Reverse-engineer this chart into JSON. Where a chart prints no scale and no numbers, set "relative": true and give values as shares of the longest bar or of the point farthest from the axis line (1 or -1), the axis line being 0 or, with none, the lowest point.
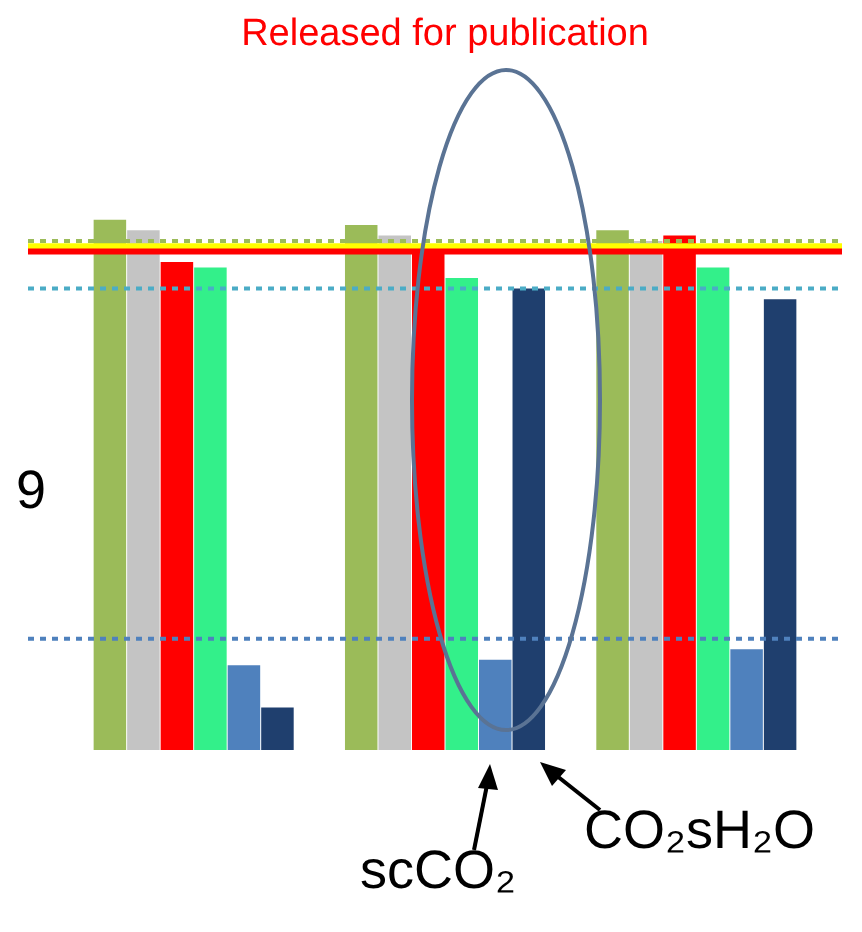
{
  "chart_data": {
    "type": "bar",
    "title": "Released for publication",
    "relative": true,
    "legend": false,
    "categories": [
      null,
      null,
      null
    ],
    "series": [
      {
        "color": "#9bbb59",
        "values": [
          1,
          0.99,
          0.98
        ]
      },
      {
        "color": "#c4c4c4",
        "values": [
          0.98,
          0.97,
          0.96
        ]
      },
      {
        "color": "#ff0000",
        "values": [
          0.92,
          0.94,
          0.97
        ]
      },
      {
        "color": "#33f08a",
        "values": [
          0.91,
          0.89,
          0.91
        ]
      },
      {
        "color": "#4f81bd",
        "values": [
          0.16,
          0.17,
          0.19
        ]
      },
      {
        "color": "#1f3f6e",
        "values": [
          0.08,
          0.87,
          0.85
        ]
      }
    ],
    "ref_lines": [
      {
        "axis": "y",
        "value": 0.96,
        "color": "#9bbb59",
        "line_style": "dotted"
      },
      {
        "axis": "y",
        "value": 0.95,
        "color": "#ffff00",
        "line_style": "solid"
      },
      {
        "axis": "y",
        "value": 0.94,
        "color": "#ff0000",
        "line_style": "solid"
      },
      {
        "axis": "y",
        "value": 0.87,
        "color": "#4bacc6",
        "line_style": "dotted"
      },
      {
        "axis": "y",
        "value": 0.21,
        "color": "#4f81bd",
        "line_style": "dotted"
      }
    ],
    "annotations": [
      "9",
      "scCO₂",
      "CO₂sH₂O"
    ]
  }
}
